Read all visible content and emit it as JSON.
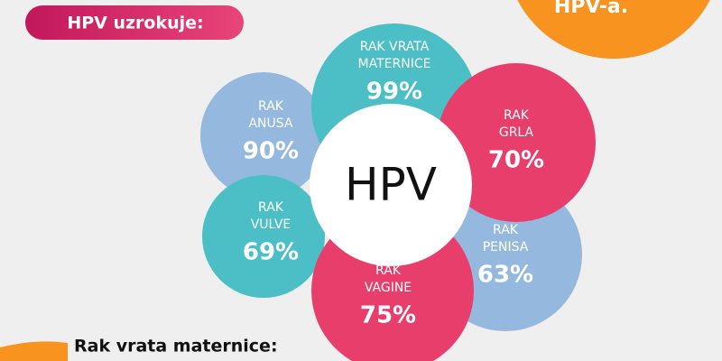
{
  "header": {
    "title": "HPV uzrokuje:",
    "corner_text": "HPV-a."
  },
  "center": {
    "label": "HPV"
  },
  "nodes": [
    {
      "label": [
        "RAK VRATA",
        "MATERNICE"
      ],
      "value": "99%"
    },
    {
      "label": [
        "RAK",
        "GRLA"
      ],
      "value": "70%"
    },
    {
      "label": [
        "RAK",
        "PENISA"
      ],
      "value": "63%"
    },
    {
      "label": [
        "RAK",
        "VAGINE"
      ],
      "value": "75%"
    },
    {
      "label": [
        "RAK",
        "VULVE"
      ],
      "value": "69%"
    },
    {
      "label": [
        "RAK",
        "ANUSA"
      ],
      "value": "90%"
    }
  ],
  "footer": {
    "title": "Rak vrata maternice:"
  }
}
